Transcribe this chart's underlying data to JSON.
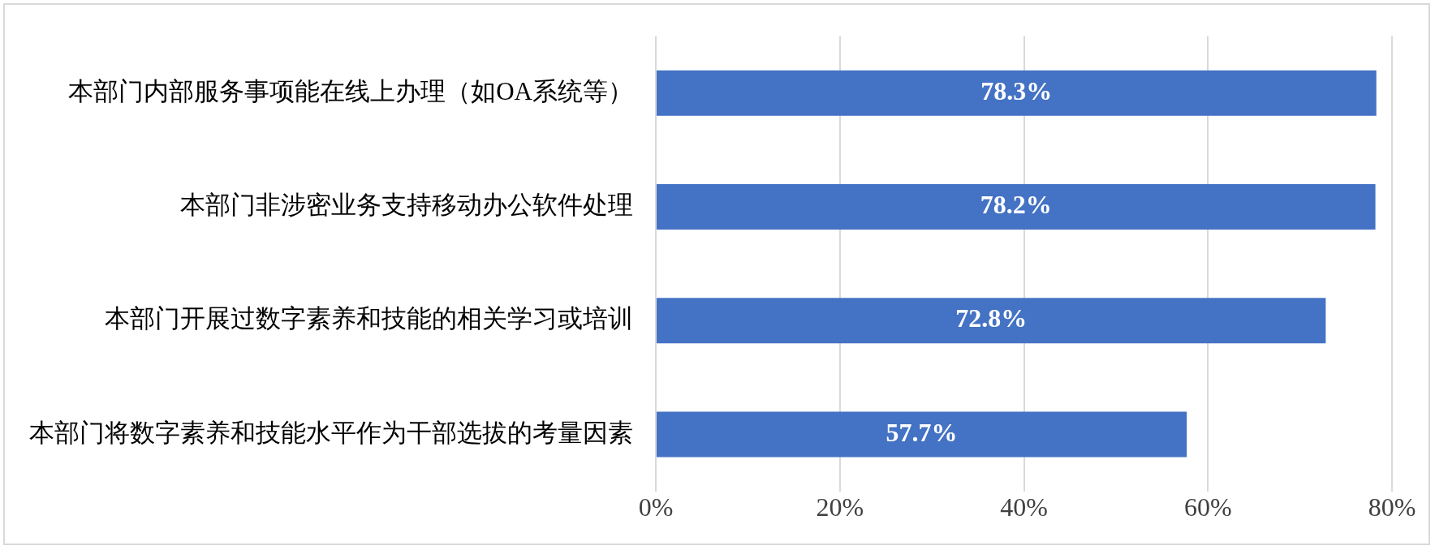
{
  "chart_data": {
    "type": "bar",
    "orientation": "horizontal",
    "categories": [
      "本部门内部服务事项能在线上办理（如OA系统等）",
      "本部门非涉密业务支持移动办公软件处理",
      "本部门开展过数字素养和技能的相关学习或培训",
      "本部门将数字素养和技能水平作为干部选拔的考量因素"
    ],
    "values": [
      78.3,
      78.2,
      72.8,
      57.7
    ],
    "value_labels": [
      "78.3%",
      "78.2%",
      "72.8%",
      "57.7%"
    ],
    "color": "#4472c4",
    "xlim": [
      0,
      80
    ],
    "xticks": [
      {
        "value": 0,
        "label": "0%"
      },
      {
        "value": 20,
        "label": "20%"
      },
      {
        "value": 40,
        "label": "40%"
      },
      {
        "value": 60,
        "label": "60%"
      },
      {
        "value": 80,
        "label": "80%"
      }
    ],
    "grid": "x",
    "legend": false
  }
}
